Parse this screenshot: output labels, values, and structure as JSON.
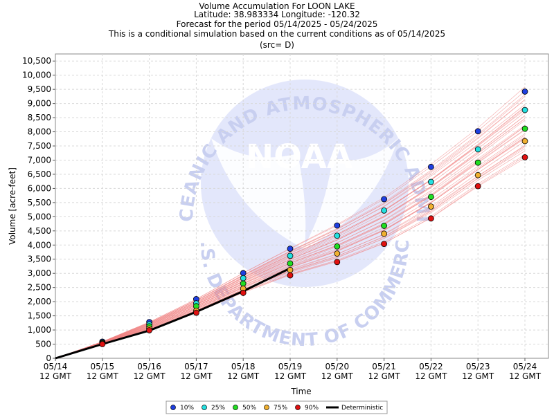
{
  "chart_data": {
    "type": "scatter",
    "title_lines": [
      "Volume Accumulation For LOON LAKE",
      "Latitude: 38.983334 Longitude: -120.32",
      "Forecast for the period 05/14/2025 - 05/24/2025",
      "This is a conditional simulation based on the current conditions as of 05/14/2025",
      "(src= D)"
    ],
    "xlabel": "Time",
    "ylabel": "Volume [acre-feet]",
    "x_ticks": [
      "05/14",
      "05/15",
      "05/16",
      "05/17",
      "05/18",
      "05/19",
      "05/20",
      "05/21",
      "05/22",
      "05/23",
      "05/24"
    ],
    "x_tick_sub": "12 GMT",
    "ylim": [
      0,
      10750
    ],
    "y_ticks": [
      0,
      500,
      1000,
      1500,
      2000,
      2500,
      3000,
      3500,
      4000,
      4500,
      5000,
      5500,
      6000,
      6500,
      7000,
      7500,
      8000,
      8500,
      9000,
      9500,
      10000,
      10500
    ],
    "y_tick_labels": [
      "0",
      "500",
      "1,000",
      "1,500",
      "2,000",
      "2,500",
      "3,000",
      "3,500",
      "4,000",
      "4,500",
      "5,000",
      "5,500",
      "6,000",
      "6,500",
      "7,000",
      "7,500",
      "8,000",
      "8,500",
      "9,000",
      "9,500",
      "10,000",
      "10,500"
    ],
    "grid": true,
    "series": [
      {
        "name": "10%",
        "color": "#1f3fe0",
        "values": [
          0,
          590,
          1280,
          2090,
          3010,
          3870,
          4690,
          5620,
          6760,
          8020,
          9420
        ]
      },
      {
        "name": "25%",
        "color": "#22e0e0",
        "values": [
          0,
          560,
          1200,
          1940,
          2830,
          3620,
          4330,
          5220,
          6230,
          7380,
          8770
        ]
      },
      {
        "name": "50%",
        "color": "#22dd22",
        "values": [
          0,
          540,
          1130,
          1840,
          2640,
          3350,
          3950,
          4680,
          5700,
          6910,
          8110
        ]
      },
      {
        "name": "75%",
        "color": "#f0b030",
        "values": [
          0,
          520,
          1050,
          1680,
          2460,
          3120,
          3700,
          4400,
          5360,
          6470,
          7670
        ]
      },
      {
        "name": "90%",
        "color": "#e01010",
        "values": [
          0,
          500,
          990,
          1610,
          2310,
          2930,
          3400,
          4040,
          4940,
          6080,
          7100
        ]
      }
    ],
    "deterministic": {
      "name": "Deterministic",
      "color": "#000000",
      "values": [
        0,
        500,
        980,
        1640,
        2370,
        3180
      ]
    },
    "legend_position": "bottom-center",
    "trace_color": "#f08080"
  },
  "watermark": {
    "top_text": "NATIONAL OCEANIC AND ATMOSPHERIC ADMINISTRATION",
    "center_text": "NOAA",
    "bottom_text": "U.S. DEPARTMENT OF COMMERCE",
    "color": "#bfc7ee"
  }
}
